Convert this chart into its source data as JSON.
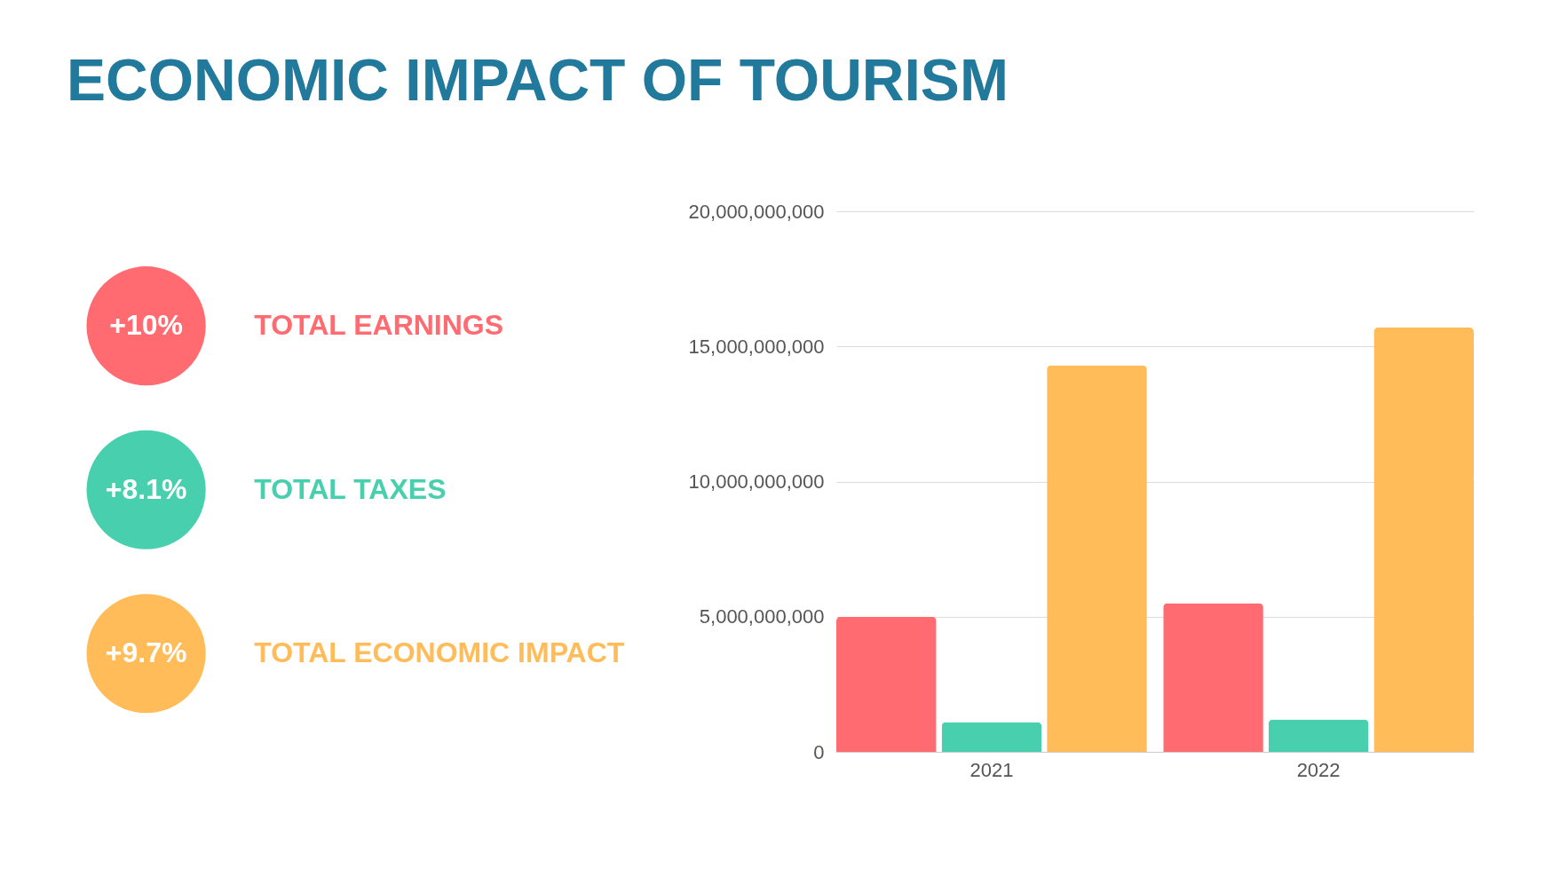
{
  "chart_data": {
    "type": "bar",
    "title": "ECONOMIC IMPACT OF TOURISM",
    "categories": [
      "2021",
      "2022"
    ],
    "series": [
      {
        "name": "TOTAL EARNINGS",
        "color": "#ff6b70",
        "values": [
          5000000000,
          5500000000
        ]
      },
      {
        "name": "TOTAL TAXES",
        "color": "#48cfad",
        "values": [
          1100000000,
          1200000000
        ]
      },
      {
        "name": "TOTAL ECONOMIC IMPACT",
        "color": "#ffbc59",
        "values": [
          14300000000,
          15700000000
        ]
      }
    ],
    "annotations": [
      "+10%",
      "+8.1%",
      "+9.7%"
    ],
    "ylim": [
      0,
      20000000000
    ],
    "yticks": [
      0,
      {
        "value": 5000000000,
        "label": "5,000,000,000"
      },
      {
        "value": 10000000000,
        "label": "10,000,000,000"
      },
      {
        "value": 15000000000,
        "label": "15,000,000,000"
      },
      {
        "value": 20000000000,
        "label": "20,000,000,000"
      }
    ],
    "grid": "y",
    "legend": "left"
  }
}
